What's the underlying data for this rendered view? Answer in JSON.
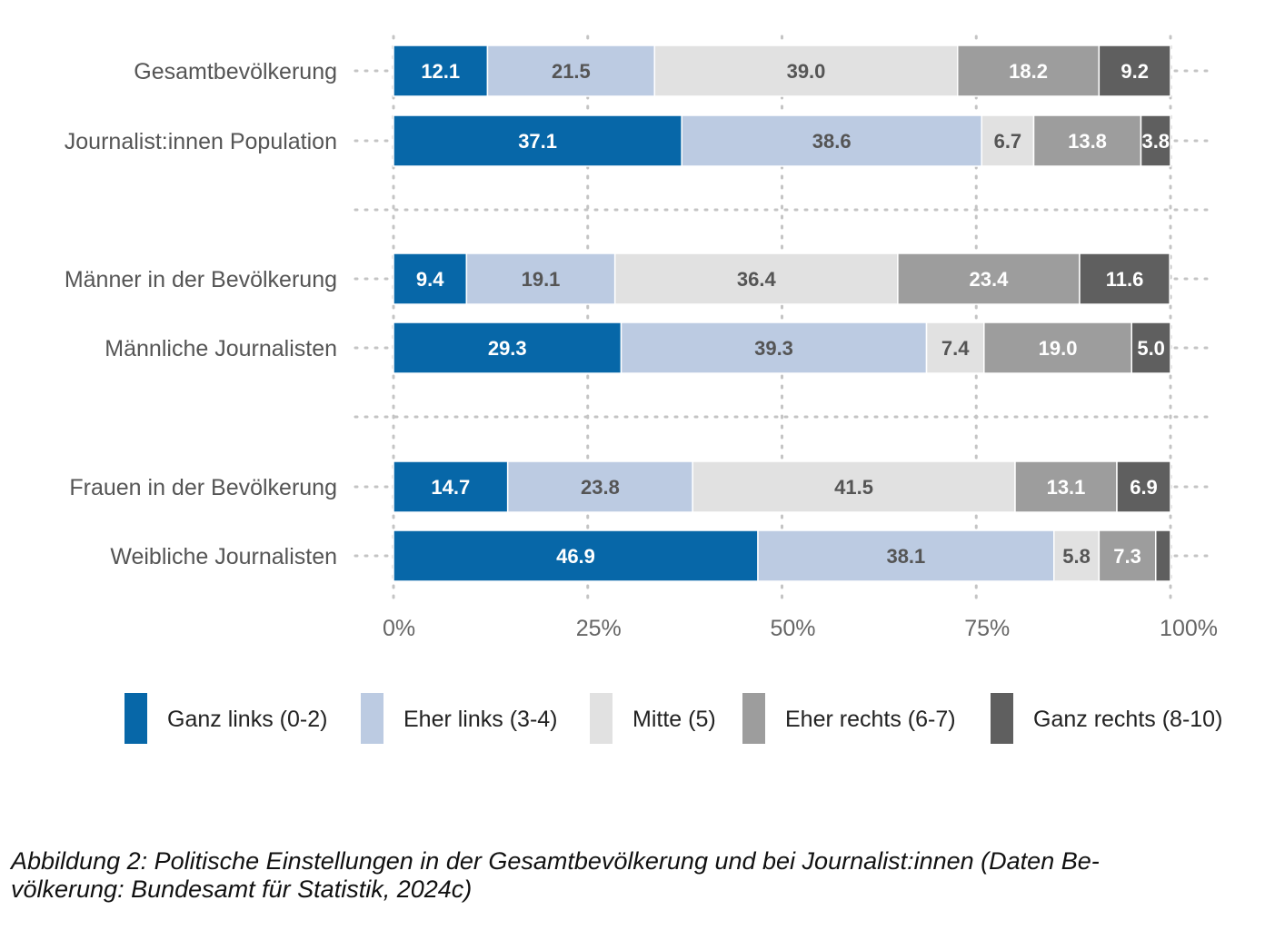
{
  "chart_data": {
    "type": "bar",
    "orientation": "horizontal",
    "stacked": true,
    "categories": [
      "Gesamtbevölkerung",
      "Journalist:innen Population",
      "Männer in der Bevölkerung",
      "Männliche Journalisten",
      "Frauen in der Bevölkerung",
      "Weibliche Journalisten"
    ],
    "groups": [
      [
        0,
        1
      ],
      [
        2,
        3
      ],
      [
        4,
        5
      ]
    ],
    "series": [
      {
        "name": "Ganz links (0-2)",
        "color": "#0767a8",
        "label_color": "#ffffff",
        "values": [
          12.1,
          37.1,
          9.4,
          29.3,
          14.7,
          46.9
        ],
        "labels": [
          "12.1",
          "37.1",
          "9.4",
          "29.3",
          "14.7",
          "46.9"
        ]
      },
      {
        "name": "Eher links (3-4)",
        "color": "#bccbe2",
        "label_color": "#555555",
        "values": [
          21.5,
          38.6,
          19.1,
          39.3,
          23.8,
          38.1
        ],
        "labels": [
          "21.5",
          "38.6",
          "19.1",
          "39.3",
          "23.8",
          "38.1"
        ]
      },
      {
        "name": "Mitte (5)",
        "color": "#e1e1e1",
        "label_color": "#555555",
        "values": [
          39.0,
          6.7,
          36.4,
          7.4,
          41.5,
          5.8
        ],
        "labels": [
          "39.0",
          "6.7",
          "36.4",
          "7.4",
          "41.5",
          "5.8"
        ]
      },
      {
        "name": "Eher rechts (6-7)",
        "color": "#9d9d9d",
        "label_color": "#ffffff",
        "values": [
          18.2,
          13.8,
          23.4,
          19.0,
          13.1,
          7.3
        ],
        "labels": [
          "18.2",
          "13.8",
          "23.4",
          "19.0",
          "13.1",
          "7.3"
        ]
      },
      {
        "name": "Ganz rechts (8-10)",
        "color": "#5f5f5f",
        "label_color": "#ffffff",
        "values": [
          9.2,
          3.8,
          11.6,
          5.0,
          6.9,
          1.9
        ],
        "labels": [
          "9.2",
          "3.8",
          "11.6",
          "5.0",
          "6.9",
          ""
        ]
      }
    ],
    "xlim": [
      0,
      100
    ],
    "xticks": [
      0,
      25,
      50,
      75,
      100
    ],
    "xtick_labels": [
      "0%",
      "25%",
      "50%",
      "75%",
      "100%"
    ],
    "grid": true,
    "legend_position": "bottom"
  },
  "caption": {
    "line1": "Abbildung 2: Politische Einstellungen in der Gesamtbevölkerung und bei Journalist:innen (Daten Be-",
    "line2": "völkerung: Bundesamt für Statistik, 2024c)"
  }
}
